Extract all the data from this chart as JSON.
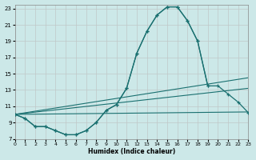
{
  "xlabel": "Humidex (Indice chaleur)",
  "bg_color": "#cce8e8",
  "line_color": "#1a7070",
  "xlim": [
    0,
    23
  ],
  "ylim": [
    7,
    23.5
  ],
  "xticks": [
    0,
    1,
    2,
    3,
    4,
    5,
    6,
    7,
    8,
    9,
    10,
    11,
    12,
    13,
    14,
    15,
    16,
    17,
    18,
    19,
    20,
    21,
    22,
    23
  ],
  "yticks": [
    7,
    9,
    11,
    13,
    15,
    17,
    19,
    21,
    23
  ],
  "curve_main_x": [
    0,
    1,
    2,
    3,
    4,
    5,
    6,
    7,
    8,
    9,
    10,
    11,
    12,
    13,
    14,
    15,
    16,
    17,
    18,
    19
  ],
  "curve_main_y": [
    10.0,
    9.5,
    8.5,
    8.5,
    8.0,
    7.5,
    7.5,
    8.0,
    9.0,
    10.5,
    11.2,
    13.2,
    17.5,
    20.2,
    22.2,
    23.2,
    23.2,
    21.5,
    19.0,
    13.5
  ],
  "curve2_x": [
    0,
    1,
    2,
    3,
    4,
    5,
    6,
    7,
    8,
    9,
    10,
    11,
    12,
    13,
    14,
    15,
    16,
    17,
    18,
    19,
    20,
    21,
    22,
    23
  ],
  "curve2_y": [
    10.0,
    9.5,
    8.5,
    8.5,
    8.0,
    7.5,
    7.5,
    8.0,
    9.0,
    10.5,
    11.2,
    13.2,
    17.5,
    20.2,
    22.2,
    23.2,
    23.2,
    21.5,
    19.0,
    13.5,
    13.5,
    12.5,
    11.5,
    10.2
  ],
  "line1_x": [
    0,
    23
  ],
  "line1_y": [
    10.0,
    14.5
  ],
  "line2_x": [
    0,
    23
  ],
  "line2_y": [
    10.0,
    13.2
  ],
  "line3_x": [
    0,
    23
  ],
  "line3_y": [
    10.0,
    10.3
  ]
}
